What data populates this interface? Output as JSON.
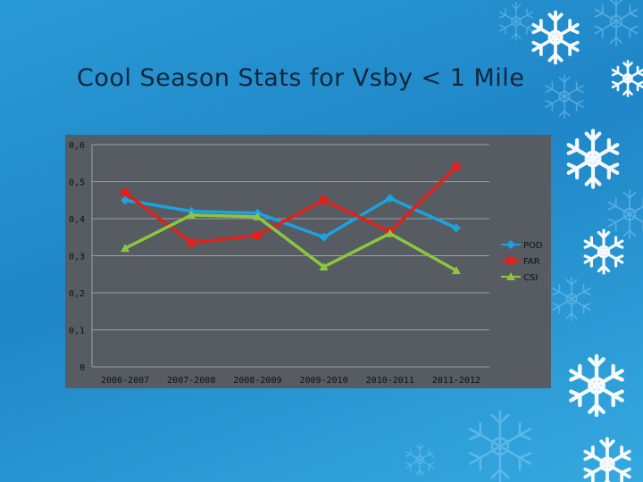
{
  "slide": {
    "title": "Cool Season Stats for Vsby < 1 Mile"
  },
  "colors": {
    "background": "#2a9ad6",
    "chart_bg": "#565c62",
    "grid": "#9aa0a6",
    "text": "#111111"
  },
  "chart_data": {
    "type": "line",
    "title": "",
    "xlabel": "",
    "ylabel": "",
    "categories": [
      "2006-2007",
      "2007-2008",
      "2008-2009",
      "2009-2010",
      "2010-2011",
      "2011-2012"
    ],
    "ylim": [
      0,
      0.6
    ],
    "yticks": [
      0,
      0.1,
      0.2,
      0.3,
      0.4,
      0.5,
      0.6
    ],
    "ytick_labels": [
      "0",
      "0,1",
      "0,2",
      "0,3",
      "0,4",
      "0,5",
      "0,6"
    ],
    "grid": true,
    "legend": "right",
    "series": [
      {
        "name": "POD",
        "color": "#1aa3e0",
        "marker": "diamond",
        "values": [
          0.45,
          0.42,
          0.415,
          0.35,
          0.455,
          0.375
        ]
      },
      {
        "name": "FAR",
        "color": "#e0201a",
        "marker": "square",
        "values": [
          0.47,
          0.335,
          0.355,
          0.45,
          0.365,
          0.54
        ]
      },
      {
        "name": "CSI",
        "color": "#8cc63f",
        "marker": "triangle",
        "values": [
          0.32,
          0.41,
          0.405,
          0.27,
          0.36,
          0.26
        ]
      }
    ]
  }
}
